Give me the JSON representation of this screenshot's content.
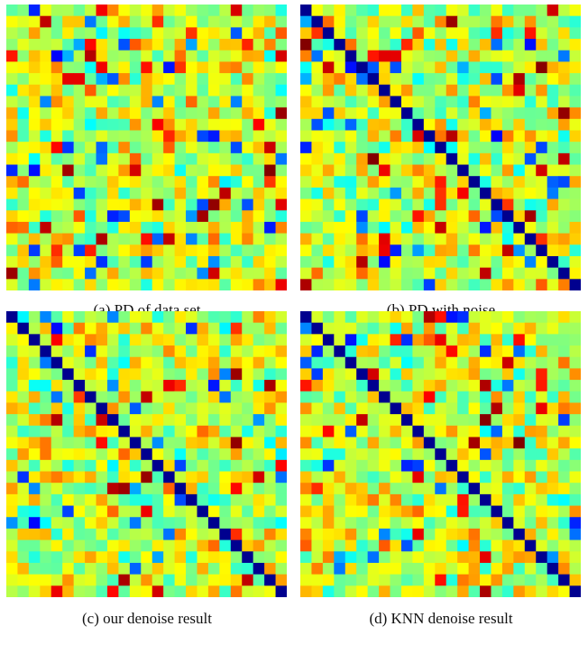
{
  "figure": {
    "panels": [
      {
        "caption": "(a) PD of data set"
      },
      {
        "caption": "(b) PD with noise"
      },
      {
        "caption": "(c) our denoise result"
      },
      {
        "caption": "(d) KNN denoise result"
      }
    ]
  },
  "chart_data": [
    {
      "type": "heatmap",
      "title": "(a) PD of data set",
      "rows": 25,
      "cols": 25,
      "colormap": "jet",
      "diagonal_highlighted": false,
      "seed": 11,
      "vmin": 0,
      "vmax": 1
    },
    {
      "type": "heatmap",
      "title": "(b) PD with noise",
      "rows": 25,
      "cols": 25,
      "colormap": "jet",
      "diagonal_highlighted": true,
      "diagonal_color": "#00008f",
      "seed": 23,
      "vmin": 0,
      "vmax": 1
    },
    {
      "type": "heatmap",
      "title": "(c) our denoise result",
      "rows": 25,
      "cols": 25,
      "colormap": "jet",
      "diagonal_highlighted": true,
      "diagonal_color": "#00008f",
      "seed": 37,
      "vmin": 0,
      "vmax": 1
    },
    {
      "type": "heatmap",
      "title": "(d) KNN denoise result",
      "rows": 25,
      "cols": 25,
      "colormap": "jet",
      "diagonal_highlighted": true,
      "diagonal_color": "#00008f",
      "seed": 53,
      "vmin": 0,
      "vmax": 1
    }
  ]
}
